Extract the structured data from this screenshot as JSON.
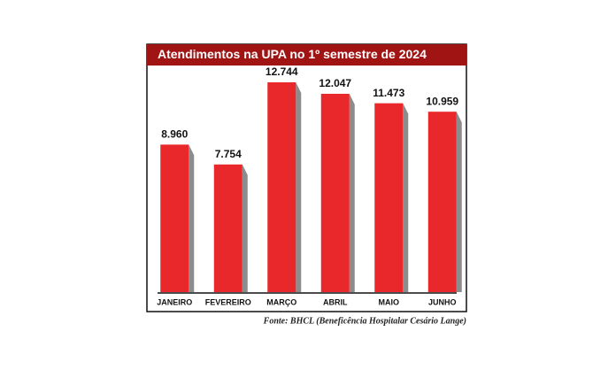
{
  "chart_data": {
    "type": "bar",
    "title": "Atendimentos na UPA no 1º semestre de 2024",
    "categories": [
      "JANEIRO",
      "FEVEREIRO",
      "MARÇO",
      "ABRIL",
      "MAIO",
      "JUNHO"
    ],
    "values": [
      8960,
      7754,
      12744,
      12047,
      11473,
      10959
    ],
    "value_labels": [
      "8.960",
      "7.754",
      "12.744",
      "12.047",
      "11.473",
      "10.959"
    ],
    "color": "#e8282a",
    "source": "Fonte: BHCL (Beneficência Hospitalar Cesário Lange)"
  }
}
